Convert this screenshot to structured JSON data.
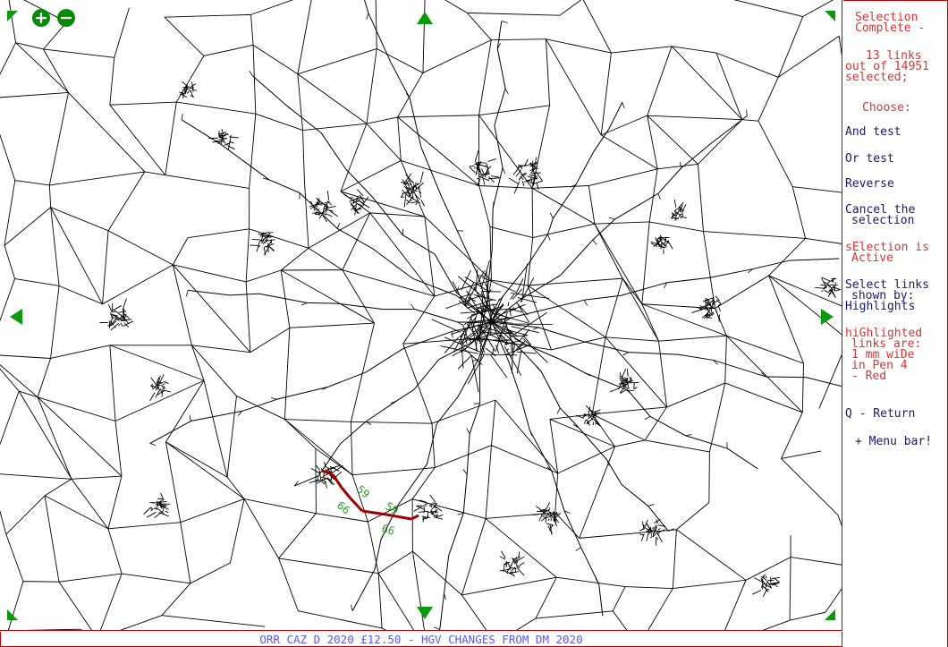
{
  "panel": {
    "status_line1": "Selection",
    "status_line2": "Complete -",
    "count_line1": "13 links",
    "count_line2": "out of 14951",
    "count_line3": "selected;",
    "choose": "Choose:",
    "menu": {
      "and_test": "And test",
      "or_test": "Or test",
      "reverse": "Reverse",
      "cancel_line1": "Cancel the",
      "cancel_line2": "selection",
      "selection_line1": "sElection is",
      "selection_line2": "Active",
      "select_links_line1": "Select links",
      "select_links_line2": "shown by:",
      "select_links_line3": "Highlights",
      "highlighted_line1": "hiGhlighted",
      "highlighted_line2": "links are:",
      "highlighted_line3": "1 mm wiDe",
      "highlighted_line4": "in Pen  4",
      "highlighted_line5": "- Red",
      "return": "Q - Return",
      "menu_bar": "+ Menu bar!"
    }
  },
  "map": {
    "zoom_in_icon": "plus",
    "zoom_out_icon": "minus",
    "link_labels": [
      "59",
      "59",
      "66",
      "66"
    ],
    "colors": {
      "network": "#000000",
      "highlight": "#a00000",
      "label": "#2a9a2a",
      "nav": "#0a9a0a"
    }
  },
  "status_bar": {
    "text": "ORR CAZ D 2020 £12.50 - HGV CHANGES FROM DM 2020"
  }
}
